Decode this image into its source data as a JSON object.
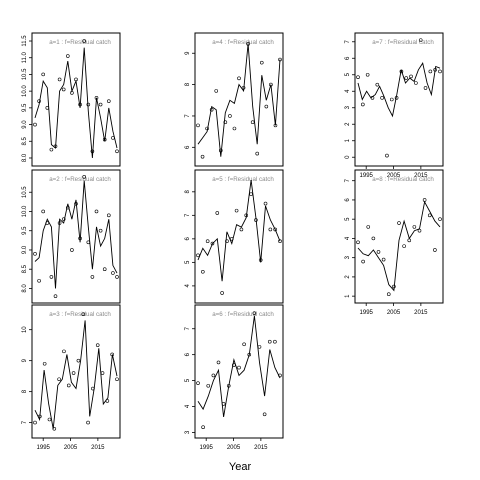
{
  "figure": {
    "xlabel": "Year"
  },
  "chart_data": [
    {
      "type": "line",
      "title": "a=1 : f=Residual catch",
      "x_range": [
        1992,
        2022
      ],
      "ylim": [
        7.85,
        11.65
      ],
      "yticks": [
        "8.0",
        "8.5",
        "9.0",
        "9.5",
        "10.0",
        "10.5",
        "11.0",
        "11.5"
      ],
      "x_tick_labels": [],
      "series": [
        {
          "type": "line",
          "values": [
            9.2,
            9.6,
            10.3,
            10.1,
            8.4,
            8.3,
            10.0,
            10.2,
            10.9,
            10.0,
            10.3,
            9.5,
            11.3,
            9.4,
            8.0,
            9.8,
            9.2,
            8.5,
            9.5,
            8.8,
            8.3
          ]
        },
        {
          "type": "points",
          "values": [
            9.0,
            9.7,
            10.5,
            9.5,
            8.25,
            8.35,
            10.35,
            10.05,
            11.05,
            9.95,
            10.35,
            9.6,
            11.5,
            9.6,
            8.2,
            9.8,
            9.6,
            8.55,
            9.7,
            8.6,
            8.2
          ]
        }
      ]
    },
    {
      "type": "line",
      "title": "a=4 : f=Residual catch",
      "x_range": [
        1992,
        2022
      ],
      "ylim": [
        5.5,
        9.55
      ],
      "yticks": [
        "6",
        "7",
        "8",
        "9"
      ],
      "x_tick_labels": [],
      "series": [
        {
          "type": "line",
          "values": [
            6.1,
            6.3,
            6.5,
            7.3,
            7.2,
            5.7,
            7.1,
            7.5,
            7.4,
            8.0,
            7.8,
            9.3,
            7.3,
            6.1,
            8.3,
            7.5,
            8.0,
            6.7,
            8.8
          ]
        },
        {
          "type": "points",
          "values": [
            6.7,
            5.7,
            6.6,
            7.2,
            7.8,
            5.9,
            6.8,
            7.0,
            6.6,
            8.2,
            7.9,
            9.3,
            6.8,
            5.8,
            8.7,
            7.3,
            8.0,
            6.7,
            8.8
          ]
        }
      ]
    },
    {
      "type": "line",
      "title": "a=7 : f=Residual catch",
      "x_range": [
        1992,
        2022
      ],
      "ylim": [
        -0.35,
        7.35
      ],
      "yticks": [
        "0",
        "1",
        "2",
        "3",
        "4",
        "5",
        "6",
        "7"
      ],
      "x_tick_labels": [
        "1995",
        "2005",
        "2015"
      ],
      "series": [
        {
          "type": "line",
          "values": [
            4.5,
            3.5,
            4.0,
            3.6,
            3.8,
            4.3,
            3.7,
            3.0,
            2.5,
            3.8,
            5.3,
            4.5,
            4.8,
            4.6,
            5.3,
            5.7,
            4.5,
            3.8,
            5.5,
            5.4
          ]
        },
        {
          "type": "points",
          "values": [
            4.85,
            3.2,
            5.0,
            3.6,
            4.4,
            3.6,
            0.1,
            3.5,
            3.6,
            5.2,
            4.8,
            4.9,
            4.5,
            7.1,
            4.2,
            5.2,
            5.3,
            5.2
          ]
        }
      ]
    },
    {
      "type": "line",
      "title": "a=2 : f=Residual catch",
      "x_range": [
        1992,
        2022
      ],
      "ylim": [
        7.7,
        11.0
      ],
      "yticks": [
        "8.0",
        "8.5",
        "9.0",
        "9.5",
        "10.0",
        "10.5"
      ],
      "x_tick_labels": [],
      "series": [
        {
          "type": "line",
          "values": [
            8.7,
            8.8,
            9.5,
            9.8,
            9.6,
            8.0,
            9.8,
            9.7,
            10.2,
            9.8,
            10.3,
            9.2,
            10.8,
            9.6,
            8.5,
            9.6,
            9.1,
            9.3,
            9.8,
            8.6,
            8.4
          ]
        },
        {
          "type": "points",
          "values": [
            8.9,
            8.2,
            10.0,
            9.7,
            8.3,
            7.8,
            9.7,
            9.8,
            10.1,
            9.0,
            10.2,
            9.3,
            10.9,
            9.2,
            8.3,
            10.0,
            9.5,
            8.5,
            9.9,
            8.4,
            8.3
          ]
        }
      ]
    },
    {
      "type": "line",
      "title": "a=5 : f=Residual catch",
      "x_range": [
        1992,
        2022
      ],
      "ylim": [
        3.4,
        8.8
      ],
      "yticks": [
        "4",
        "5",
        "6",
        "7",
        "8"
      ],
      "x_tick_labels": [],
      "series": [
        {
          "type": "line",
          "values": [
            5.1,
            5.6,
            5.3,
            5.8,
            6.0,
            4.2,
            6.3,
            5.8,
            6.6,
            6.5,
            6.9,
            8.5,
            6.9,
            5.0,
            7.4,
            6.8,
            6.4,
            5.9
          ]
        },
        {
          "type": "points",
          "values": [
            5.3,
            4.6,
            5.9,
            5.8,
            7.1,
            3.7,
            5.9,
            6.0,
            7.2,
            6.4,
            7.0,
            7.9,
            6.8,
            5.1,
            7.5,
            6.4,
            6.4,
            5.9
          ]
        }
      ]
    },
    {
      "type": "line",
      "title": "a=8 : f=Residual catch",
      "x_range": [
        1992,
        2022
      ],
      "ylim": [
        0.8,
        7.4
      ],
      "yticks": [
        "1",
        "2",
        "3",
        "4",
        "5",
        "6",
        "7"
      ],
      "x_tick_labels": [
        "1995",
        "2005",
        "2015"
      ],
      "series": [
        {
          "type": "line",
          "values": [
            3.5,
            3.2,
            3.1,
            3.4,
            3.0,
            2.6,
            1.6,
            1.3,
            3.9,
            4.9,
            4.0,
            4.4,
            4.5,
            5.9,
            5.4,
            4.9,
            4.6
          ]
        },
        {
          "type": "points",
          "values": [
            3.8,
            2.8,
            4.6,
            4.0,
            3.3,
            2.9,
            1.1,
            1.5,
            4.8,
            3.6,
            3.9,
            4.6,
            4.4,
            6.0,
            5.2,
            3.4,
            5.0
          ]
        }
      ]
    },
    {
      "type": "line",
      "title": "a=3 : f=Residual catch",
      "x_range": [
        1992,
        2022
      ],
      "ylim": [
        6.6,
        10.7
      ],
      "yticks": [
        "7",
        "8",
        "9",
        "10"
      ],
      "x_tick_labels": [
        "1995",
        "2005",
        "2015"
      ],
      "series": [
        {
          "type": "line",
          "values": [
            7.4,
            7.1,
            8.7,
            7.6,
            6.8,
            8.2,
            8.4,
            9.2,
            8.3,
            8.1,
            9.0,
            10.3,
            7.2,
            8.1,
            9.4,
            7.6,
            7.8,
            9.2,
            8.5
          ]
        },
        {
          "type": "points",
          "values": [
            7.0,
            7.2,
            8.9,
            7.1,
            6.8,
            8.4,
            9.3,
            8.2,
            8.6,
            9.0,
            10.5,
            7.0,
            8.1,
            9.5,
            8.6,
            7.7,
            9.2,
            8.4
          ]
        }
      ]
    },
    {
      "type": "line",
      "title": "a=6 : f=Residual catch",
      "x_range": [
        1992,
        2022
      ],
      "ylim": [
        2.9,
        7.8
      ],
      "yticks": [
        "3",
        "4",
        "5",
        "6",
        "7"
      ],
      "x_tick_labels": [
        "1995",
        "2005",
        "2015"
      ],
      "series": [
        {
          "type": "line",
          "values": [
            4.2,
            3.9,
            4.4,
            5.0,
            5.4,
            3.6,
            4.8,
            5.8,
            5.2,
            5.4,
            6.0,
            7.5,
            5.7,
            4.4,
            6.2,
            5.5,
            5.1
          ]
        },
        {
          "type": "points",
          "values": [
            4.9,
            3.2,
            4.8,
            5.2,
            5.7,
            4.1,
            4.8,
            5.6,
            5.5,
            6.4,
            6.0,
            7.6,
            6.3,
            3.7,
            6.5,
            6.5,
            5.2
          ]
        }
      ]
    }
  ]
}
